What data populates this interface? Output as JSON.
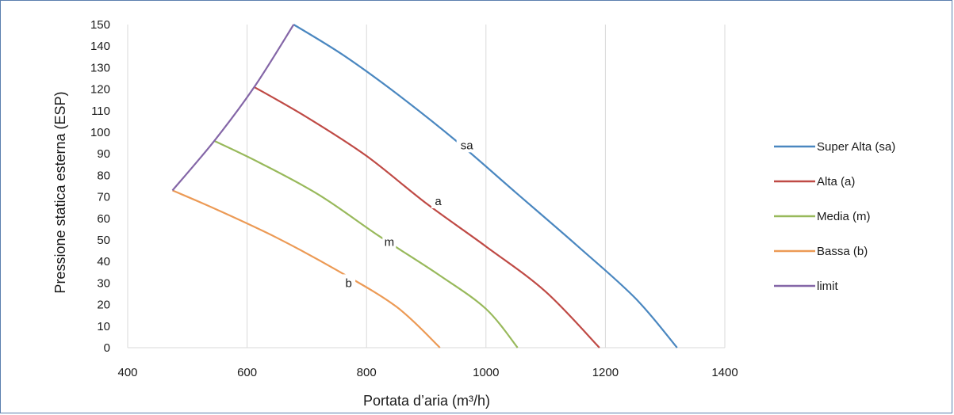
{
  "chart_data": {
    "type": "line",
    "title": "",
    "xlabel": "Portata d’aria (m³/h)",
    "ylabel": "Pressione statica esterna (ESP)",
    "xlim": [
      400,
      1400
    ],
    "ylim": [
      0,
      150
    ],
    "x_ticks": [
      "400",
      "600",
      "800",
      "1000",
      "1200",
      "1400"
    ],
    "y_ticks": [
      "0",
      "10",
      "20",
      "30",
      "40",
      "50",
      "60",
      "70",
      "80",
      "90",
      "100",
      "110",
      "120",
      "130",
      "140",
      "150"
    ],
    "grid": "vertical",
    "legend_position": "right",
    "series": [
      {
        "name": "Super Alta (sa)",
        "color": "#4a87c0",
        "label": "sa",
        "label_at": [
          968,
          94
        ],
        "points": [
          [
            678,
            150
          ],
          [
            760,
            136
          ],
          [
            850,
            118
          ],
          [
            950,
            96
          ],
          [
            1050,
            72
          ],
          [
            1150,
            48
          ],
          [
            1250,
            23
          ],
          [
            1320,
            0
          ]
        ]
      },
      {
        "name": "Alta (a)",
        "color": "#bf4a45",
        "label": "a",
        "label_at": [
          920,
          68
        ],
        "points": [
          [
            612,
            121
          ],
          [
            700,
            107
          ],
          [
            800,
            89
          ],
          [
            900,
            67
          ],
          [
            1000,
            47
          ],
          [
            1100,
            26
          ],
          [
            1190,
            0
          ]
        ]
      },
      {
        "name": "Media (m)",
        "color": "#98b95b",
        "label": "m",
        "label_at": [
          838,
          49
        ],
        "points": [
          [
            545,
            96
          ],
          [
            620,
            86
          ],
          [
            720,
            71
          ],
          [
            820,
            52
          ],
          [
            920,
            34
          ],
          [
            1000,
            18
          ],
          [
            1053,
            0
          ]
        ]
      },
      {
        "name": "Bassa (b)",
        "color": "#ec9a55",
        "label": "b",
        "label_at": [
          770,
          30
        ],
        "points": [
          [
            475,
            73
          ],
          [
            550,
            64
          ],
          [
            650,
            51
          ],
          [
            750,
            36
          ],
          [
            850,
            19
          ],
          [
            923,
            0
          ]
        ]
      },
      {
        "name": "limit",
        "color": "#8466a7",
        "label": "",
        "points": [
          [
            475,
            73
          ],
          [
            545,
            96
          ],
          [
            612,
            121
          ],
          [
            678,
            150
          ]
        ]
      }
    ]
  }
}
